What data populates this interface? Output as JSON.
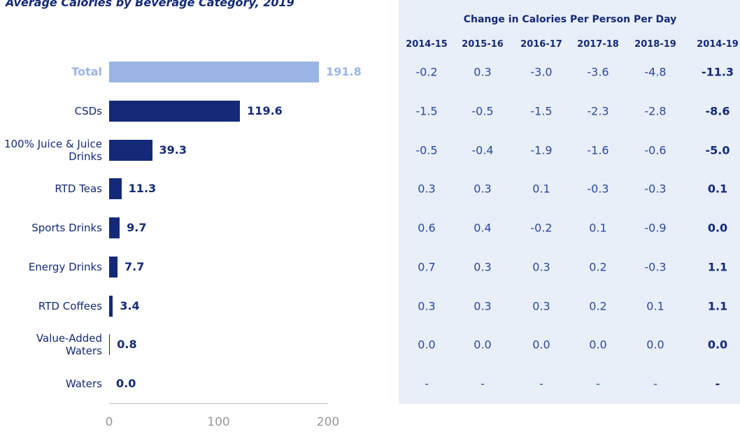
{
  "chart_data": {
    "type": "hbar",
    "title": "Average Calories by Beverage Category, 2019",
    "categories": [
      "Total",
      "CSDs",
      "100% Juice & Juice Drinks",
      "RTD Teas",
      "Sports Drinks",
      "Energy Drinks",
      "RTD Coffees",
      "Value-Added Waters",
      "Waters"
    ],
    "values": [
      191.8,
      119.6,
      39.3,
      11.3,
      9.7,
      7.7,
      3.4,
      0.8,
      0.0
    ],
    "value_labels": [
      "191.8",
      "119.6",
      "39.3",
      "11.3",
      "9.7",
      "7.7",
      "3.4",
      "0.8",
      "0.0"
    ],
    "colors": [
      "#9bb5e6",
      "#142a78",
      "#142a78",
      "#142a78",
      "#142a78",
      "#142a78",
      "#142a78",
      "#142a78",
      "#142a78"
    ],
    "xlim": [
      0,
      200
    ],
    "xticks": [
      0,
      100,
      200
    ]
  },
  "table": {
    "title": "Change in Calories Per Person Per Day",
    "columns": [
      "2014-15",
      "2015-16",
      "2016-17",
      "2017-18",
      "2018-19",
      "2014-19"
    ],
    "rows": [
      [
        "-0.2",
        "0.3",
        "-3.0",
        "-3.6",
        "-4.8",
        "-11.3"
      ],
      [
        "-1.5",
        "-0.5",
        "-1.5",
        "-2.3",
        "-2.8",
        "-8.6"
      ],
      [
        "-0.5",
        "-0.4",
        "-1.9",
        "-1.6",
        "-0.6",
        "-5.0"
      ],
      [
        "0.3",
        "0.3",
        "0.1",
        "-0.3",
        "-0.3",
        "0.1"
      ],
      [
        "0.6",
        "0.4",
        "-0.2",
        "0.1",
        "-0.9",
        "0.0"
      ],
      [
        "0.7",
        "0.3",
        "0.3",
        "0.2",
        "-0.3",
        "1.1"
      ],
      [
        "0.3",
        "0.3",
        "0.3",
        "0.2",
        "0.1",
        "1.1"
      ],
      [
        "0.0",
        "0.0",
        "0.0",
        "0.0",
        "0.0",
        "0.0"
      ],
      [
        "-",
        "-",
        "-",
        "-",
        "-",
        "-"
      ]
    ]
  }
}
